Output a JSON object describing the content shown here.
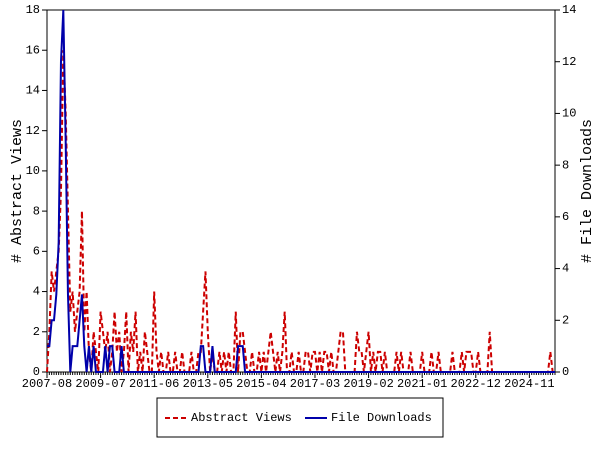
{
  "chart_data": {
    "type": "line",
    "ylabel": "# Abstract Views",
    "y2label": "# File Downloads",
    "categories": [
      "2007-08",
      null,
      null,
      null,
      null,
      null,
      null,
      null,
      null,
      null,
      null,
      null,
      null,
      null,
      null,
      null,
      null,
      null,
      null,
      null,
      null,
      null,
      null,
      "2009-07",
      null,
      null,
      null,
      null,
      null,
      null,
      null,
      null,
      null,
      null,
      null,
      null,
      null,
      null,
      null,
      null,
      null,
      null,
      null,
      null,
      null,
      null,
      "2011-06",
      null,
      null,
      null,
      null,
      null,
      null,
      null,
      null,
      null,
      null,
      null,
      null,
      null,
      null,
      null,
      null,
      null,
      null,
      null,
      null,
      null,
      null,
      "2013-05",
      null,
      null,
      null,
      null,
      null,
      null,
      null,
      null,
      null,
      null,
      null,
      null,
      null,
      null,
      null,
      null,
      null,
      null,
      null,
      null,
      null,
      null,
      "2015-04",
      null,
      null,
      null,
      null,
      null,
      null,
      null,
      null,
      null,
      null,
      null,
      null,
      null,
      null,
      null,
      null,
      null,
      null,
      null,
      null,
      null,
      null,
      "2017-03",
      null,
      null,
      null,
      null,
      null,
      null,
      null,
      null,
      null,
      null,
      null,
      null,
      null,
      null,
      null,
      null,
      null,
      null,
      null,
      null,
      null,
      null,
      "2019-02",
      null,
      null,
      null,
      null,
      null,
      null,
      null,
      null,
      null,
      null,
      null,
      null,
      null,
      null,
      null,
      null,
      null,
      null,
      null,
      null,
      null,
      null,
      "2021-01",
      null,
      null,
      null,
      null,
      null,
      null,
      null,
      null,
      null,
      null,
      null,
      null,
      null,
      null,
      null,
      null,
      null,
      null,
      null,
      null,
      null,
      null,
      "2022-12",
      null,
      null,
      null,
      null,
      null,
      null,
      null,
      null,
      null,
      null,
      null,
      null,
      null,
      null,
      null,
      null,
      null,
      null,
      null,
      null,
      null,
      null,
      "2024-11",
      null,
      null,
      null,
      null,
      null,
      null,
      null,
      null,
      null,
      null,
      null
    ],
    "series": [
      {
        "name": "Abstract Views",
        "color": "#cc0000",
        "dash": true,
        "values": [
          0,
          2,
          5,
          4,
          5,
          6,
          9,
          16,
          13,
          8,
          3,
          4,
          2,
          3,
          4,
          8,
          2,
          4,
          1,
          0,
          2,
          1,
          0,
          3,
          2,
          1,
          2,
          0,
          1,
          3,
          1,
          2,
          0,
          1,
          3,
          0,
          2,
          1,
          3,
          0,
          1,
          0,
          2,
          1,
          0,
          0,
          4,
          1,
          0,
          1,
          0,
          0,
          1,
          0,
          0,
          1,
          0,
          0,
          1,
          0,
          0,
          0,
          1,
          0,
          0,
          1,
          1,
          3,
          5,
          2,
          0,
          1,
          0,
          0,
          1,
          0,
          1,
          0,
          1,
          0,
          0,
          3,
          0,
          2,
          2,
          1,
          0,
          0,
          1,
          0,
          0,
          1,
          0,
          1,
          0,
          1,
          2,
          1,
          0,
          1,
          0,
          1,
          3,
          0,
          0,
          1,
          0,
          0,
          1,
          0,
          0,
          1,
          1,
          0,
          1,
          1,
          0,
          1,
          0,
          1,
          1,
          0,
          1,
          0,
          0,
          1,
          2,
          2,
          0,
          0,
          0,
          0,
          0,
          2,
          1,
          1,
          0,
          1,
          2,
          0,
          1,
          0,
          1,
          1,
          0,
          1,
          0,
          0,
          0,
          0,
          1,
          0,
          1,
          0,
          0,
          0,
          1,
          0,
          0,
          0,
          0,
          1,
          0,
          0,
          0,
          1,
          0,
          0,
          1,
          0,
          0,
          0,
          0,
          0,
          1,
          0,
          0,
          0,
          1,
          0,
          1,
          1,
          1,
          0,
          0,
          1,
          0,
          0,
          0,
          0,
          2,
          0,
          0,
          0,
          0,
          0,
          0,
          0,
          0,
          0,
          0,
          0,
          0,
          0,
          0,
          0,
          0,
          0,
          0,
          0,
          0,
          0,
          0,
          0,
          0,
          0,
          1,
          0,
          0
        ]
      },
      {
        "name": "File Downloads",
        "color": "#0000aa",
        "dash": false,
        "axis": "y2",
        "values": [
          1,
          1,
          2,
          2,
          3,
          5,
          12,
          14,
          9,
          3,
          0,
          1,
          1,
          1,
          2,
          3,
          1,
          0,
          1,
          0,
          1,
          0,
          0,
          0,
          0,
          1,
          0,
          1,
          1,
          0,
          0,
          0,
          1,
          0,
          0,
          0,
          0,
          0,
          0,
          0,
          0,
          0,
          0,
          0,
          0,
          0,
          0,
          0,
          0,
          0,
          0,
          0,
          0,
          0,
          0,
          0,
          0,
          0,
          0,
          0,
          0,
          0,
          0,
          0,
          0,
          0,
          1,
          1,
          0,
          0,
          0,
          1,
          0,
          0,
          0,
          0,
          0,
          0,
          0,
          0,
          0,
          0,
          1,
          1,
          1,
          0,
          0,
          0,
          0,
          0,
          0,
          0,
          0,
          0,
          0,
          0,
          0,
          0,
          0,
          0,
          0,
          0,
          0,
          0,
          0,
          0,
          0,
          0,
          0,
          0,
          0,
          0,
          0,
          0,
          0,
          0,
          0,
          0,
          0,
          0,
          0,
          0,
          0,
          0,
          0,
          0,
          0,
          0,
          0,
          0,
          0,
          0,
          0,
          0,
          0,
          0,
          0,
          0,
          0,
          0,
          0,
          0,
          0,
          0,
          0,
          0,
          0,
          0,
          0,
          0,
          0,
          0,
          0,
          0,
          0,
          0,
          0,
          0,
          0,
          0,
          0,
          0,
          0,
          0,
          0,
          0,
          0,
          0,
          0,
          0,
          0,
          0,
          0,
          0,
          0,
          0,
          0,
          0,
          0,
          0,
          0,
          0,
          0,
          0,
          0,
          0,
          0,
          0,
          0,
          0,
          0,
          0,
          0,
          0,
          0,
          0,
          0,
          0,
          0,
          0,
          0,
          0,
          0,
          0,
          0,
          0,
          0,
          0,
          0,
          0,
          0,
          0,
          0,
          0,
          0,
          0,
          0,
          0,
          0
        ]
      }
    ],
    "ylim": [
      0,
      18
    ],
    "yticks": [
      0,
      2,
      4,
      6,
      8,
      10,
      12,
      14,
      16,
      18
    ],
    "y2lim": [
      0,
      14
    ],
    "y2ticks": [
      0,
      2,
      4,
      6,
      8,
      10,
      12,
      14
    ],
    "legend": "bottom"
  }
}
